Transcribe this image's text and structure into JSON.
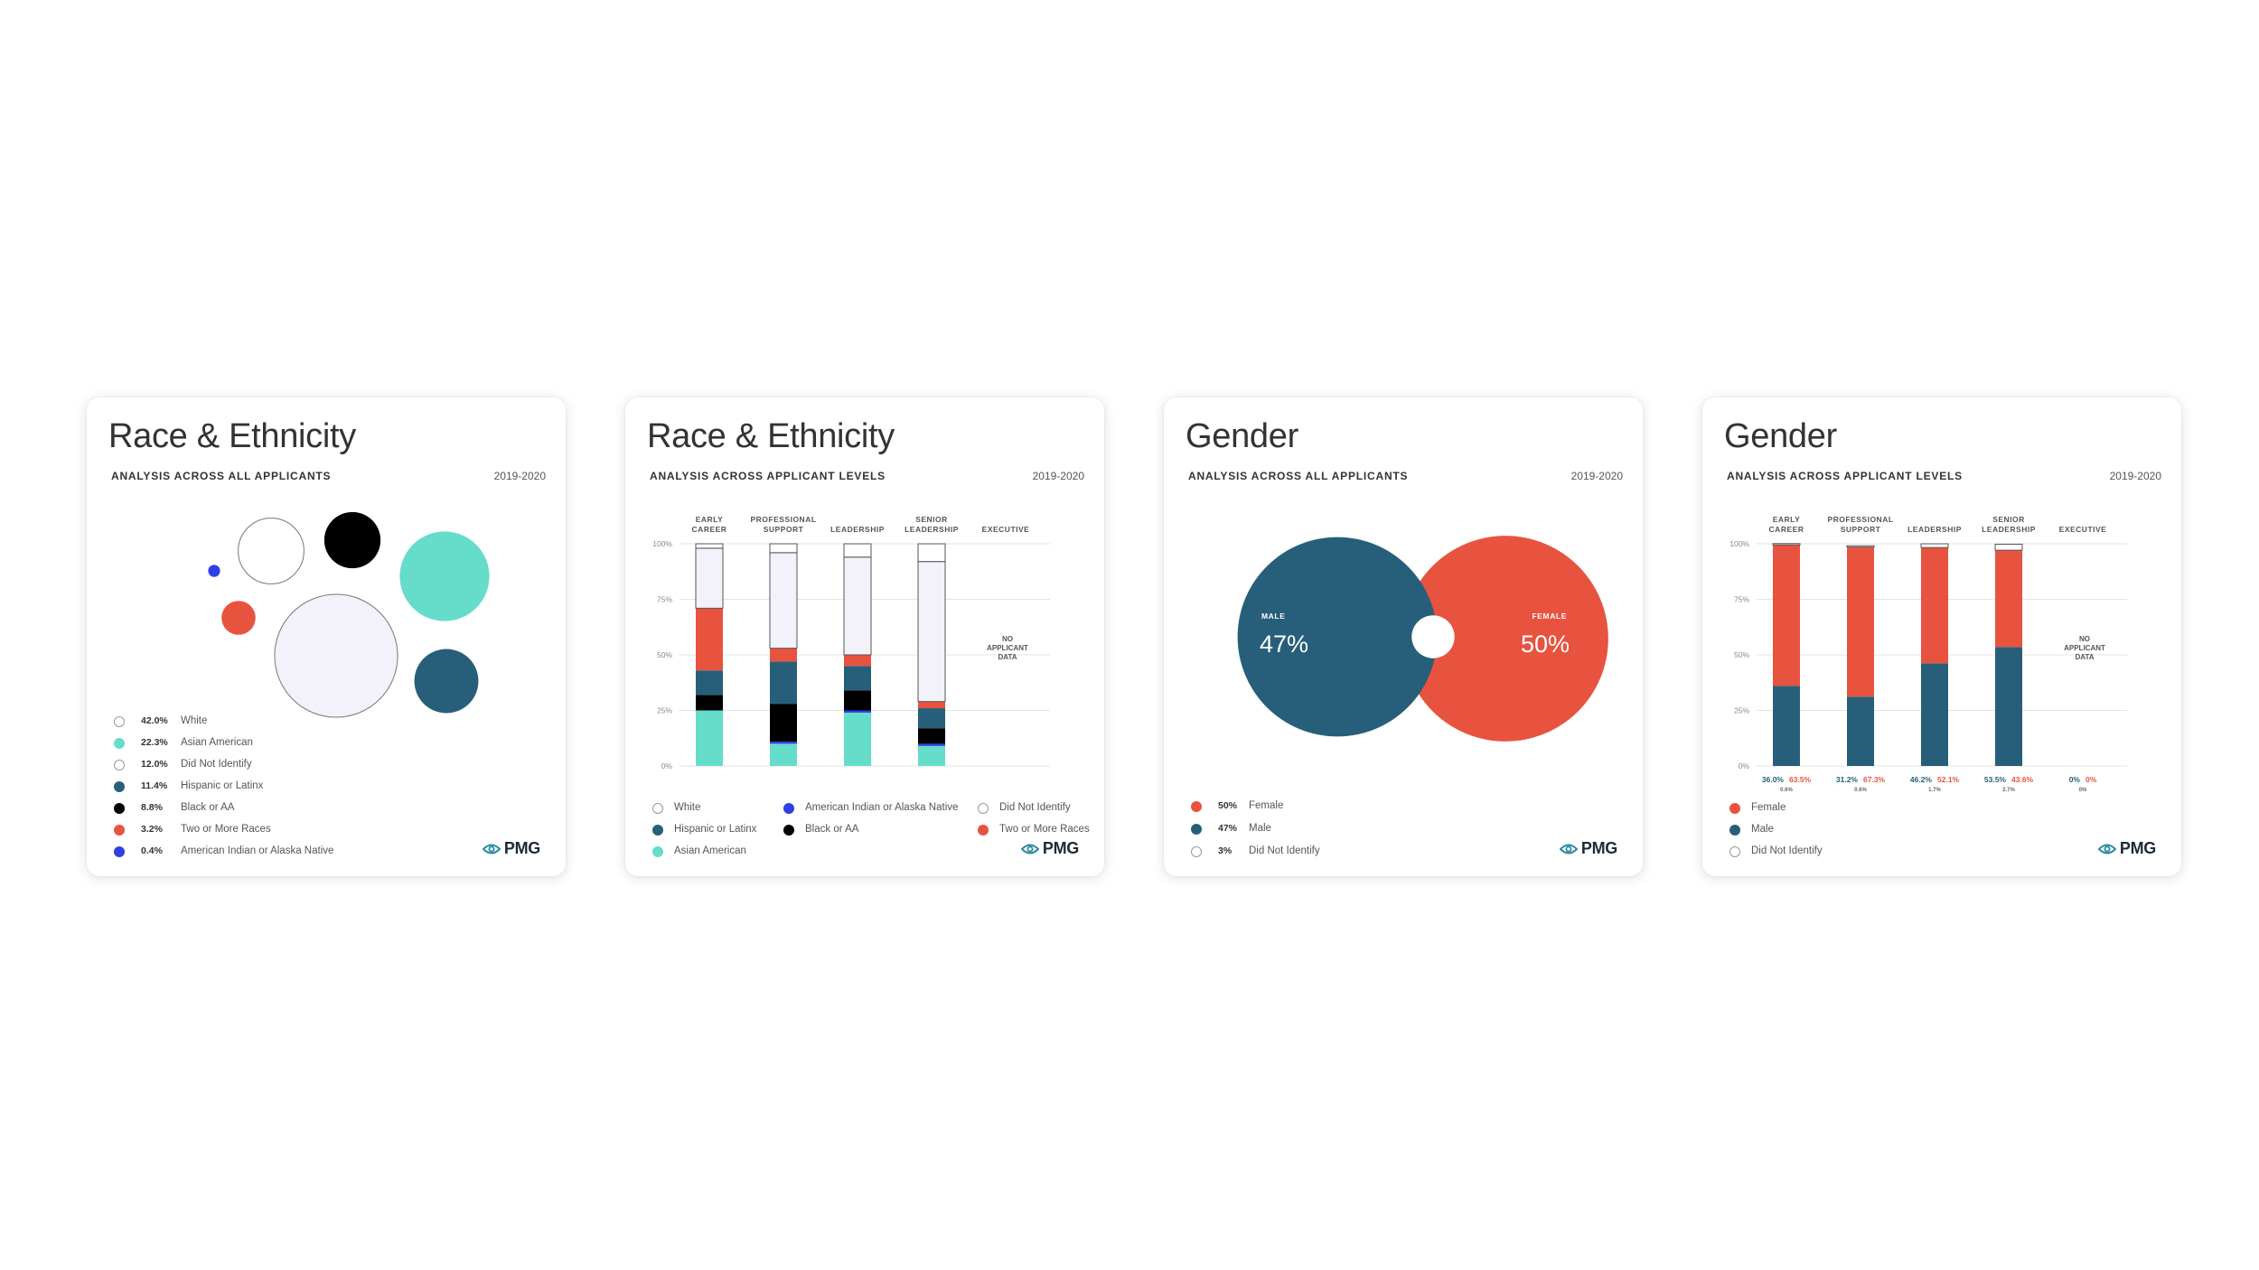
{
  "colors": {
    "white": "#f3f2fa",
    "asian": "#66dccb",
    "hispanic": "#275f7a",
    "black": "#000000",
    "two_or_more": "#e8533f",
    "american_indian": "#2f3fe6",
    "did_not_identify": "#ffffff",
    "male": "#275f7a",
    "female": "#e8533f"
  },
  "brand": {
    "logo_text": "PMG"
  },
  "cards": [
    {
      "title": "Race & Ethnicity",
      "subtitle": "ANALYSIS ACROSS ALL APPLICANTS",
      "year": "2019-2020"
    },
    {
      "title": "Race & Ethnicity",
      "subtitle": "ANALYSIS ACROSS APPLICANT LEVELS",
      "year": "2019-2020"
    },
    {
      "title": "Gender",
      "subtitle": "ANALYSIS ACROSS ALL APPLICANTS",
      "year": "2019-2020"
    },
    {
      "title": "Gender",
      "subtitle": "ANALYSIS ACROSS APPLICANT LEVELS",
      "year": "2019-2020"
    }
  ],
  "chart_data": [
    {
      "type": "bubble",
      "title": "Race & Ethnicity",
      "subtitle": "ANALYSIS ACROSS ALL APPLICANTS",
      "series": [
        {
          "name": "White",
          "value": 42.0,
          "pct_label": "42.0%",
          "color": "#f3f2fa"
        },
        {
          "name": "Asian American",
          "value": 22.3,
          "pct_label": "22.3%",
          "color": "#66dccb"
        },
        {
          "name": "Did Not Identify",
          "value": 12.0,
          "pct_label": "12.0%",
          "color": "#ffffff"
        },
        {
          "name": "Hispanic or Latinx",
          "value": 11.4,
          "pct_label": "11.4%",
          "color": "#275f7a"
        },
        {
          "name": "Black or AA",
          "value": 8.8,
          "pct_label": "8.8%",
          "color": "#000000"
        },
        {
          "name": "Two or More Races",
          "value": 3.2,
          "pct_label": "3.2%",
          "color": "#e8533f"
        },
        {
          "name": "American Indian or Alaska Native",
          "value": 0.4,
          "pct_label": "0.4%",
          "color": "#2f3fe6"
        }
      ]
    },
    {
      "type": "bar",
      "stacked": true,
      "title": "Race & Ethnicity",
      "subtitle": "ANALYSIS ACROSS APPLICANT LEVELS",
      "categories": [
        [
          "EARLY",
          "CAREER"
        ],
        [
          "PROFESSIONAL",
          "SUPPORT"
        ],
        [
          "LEADERSHIP"
        ],
        [
          "SENIOR",
          "LEADERSHIP"
        ],
        [
          "EXECUTIVE"
        ]
      ],
      "yticks": [
        "100%",
        "75%",
        "50%",
        "25%",
        "0%"
      ],
      "ylim": [
        0,
        100
      ],
      "no_data_label": [
        "NO",
        "APPLICANT",
        "DATA"
      ],
      "series": [
        {
          "name": "Asian American",
          "color": "#66dccb",
          "values": [
            25,
            10,
            24,
            9,
            0
          ]
        },
        {
          "name": "American Indian or Alaska Native",
          "color": "#2f3fe6",
          "values": [
            0,
            1,
            1,
            1,
            0
          ]
        },
        {
          "name": "Black or AA",
          "color": "#000000",
          "values": [
            7,
            17,
            9,
            7,
            0
          ]
        },
        {
          "name": "Hispanic or Latinx",
          "color": "#275f7a",
          "values": [
            11,
            19,
            11,
            9,
            0
          ]
        },
        {
          "name": "Two or More Races",
          "color": "#e8533f",
          "values": [
            28,
            6,
            5,
            3,
            0
          ]
        },
        {
          "name": "White",
          "color": "#f3f2fa",
          "values": [
            27,
            43,
            44,
            63,
            0
          ]
        },
        {
          "name": "Did Not Identify",
          "color": "#ffffff",
          "values": [
            2,
            4,
            6,
            8,
            0
          ]
        }
      ],
      "legend": [
        {
          "name": "White",
          "color": "#f3f2fa",
          "hollow": true
        },
        {
          "name": "American Indian or Alaska Native",
          "color": "#2f3fe6"
        },
        {
          "name": "Did Not Identify",
          "color": "#ffffff",
          "hollow": true
        },
        {
          "name": "Hispanic or Latinx",
          "color": "#275f7a"
        },
        {
          "name": "Black or AA",
          "color": "#000000"
        },
        {
          "name": "Asian American",
          "color": "#66dccb"
        },
        {
          "name": "Two or More Races",
          "color": "#e8533f"
        }
      ]
    },
    {
      "type": "venn",
      "title": "Gender",
      "subtitle": "ANALYSIS ACROSS ALL APPLICANTS",
      "series": [
        {
          "name": "Male",
          "label": "MALE",
          "value": 47,
          "pct_label": "47%",
          "color": "#275f7a"
        },
        {
          "name": "Female",
          "label": "FEMALE",
          "value": 50,
          "pct_label": "50%",
          "color": "#e8533f"
        },
        {
          "name": "Did Not Identify",
          "value": 3,
          "pct_label": "3%",
          "color": "#ffffff"
        }
      ],
      "legend": [
        {
          "pct": "50%",
          "name": "Female",
          "color": "#e8533f"
        },
        {
          "pct": "47%",
          "name": "Male",
          "color": "#275f7a"
        },
        {
          "pct": "3%",
          "name": "Did Not Identify",
          "color": "#ffffff",
          "hollow": true
        }
      ]
    },
    {
      "type": "bar",
      "stacked": true,
      "title": "Gender",
      "subtitle": "ANALYSIS ACROSS APPLICANT LEVELS",
      "categories": [
        [
          "EARLY",
          "CAREER"
        ],
        [
          "PROFESSIONAL",
          "SUPPORT"
        ],
        [
          "LEADERSHIP"
        ],
        [
          "SENIOR",
          "LEADERSHIP"
        ],
        [
          "EXECUTIVE"
        ]
      ],
      "yticks": [
        "100%",
        "75%",
        "50%",
        "25%",
        "0%"
      ],
      "ylim": [
        0,
        100
      ],
      "no_data_label": [
        "NO",
        "APPLICANT",
        "DATA"
      ],
      "series": [
        {
          "name": "Male",
          "color": "#275f7a",
          "values": [
            36.0,
            31.2,
            46.2,
            53.5,
            0
          ]
        },
        {
          "name": "Female",
          "color": "#e8533f",
          "values": [
            63.5,
            67.3,
            52.1,
            43.6,
            0
          ]
        },
        {
          "name": "Did Not Identify",
          "color": "#ffffff",
          "values": [
            0.6,
            0.6,
            1.7,
            2.7,
            0
          ]
        }
      ],
      "value_labels": [
        {
          "male": "36.0%",
          "female": "63.5%",
          "other": "0.6%"
        },
        {
          "male": "31.2%",
          "female": "67.3%",
          "other": "0.6%"
        },
        {
          "male": "46.2%",
          "female": "52.1%",
          "other": "1.7%"
        },
        {
          "male": "53.5%",
          "female": "43.6%",
          "other": "2.7%"
        },
        {
          "male": "0%",
          "female": "0%",
          "other": "0%"
        }
      ],
      "legend": [
        {
          "name": "Female",
          "color": "#e8533f"
        },
        {
          "name": "Male",
          "color": "#275f7a"
        },
        {
          "name": "Did Not Identify",
          "color": "#ffffff",
          "hollow": true
        }
      ]
    }
  ]
}
